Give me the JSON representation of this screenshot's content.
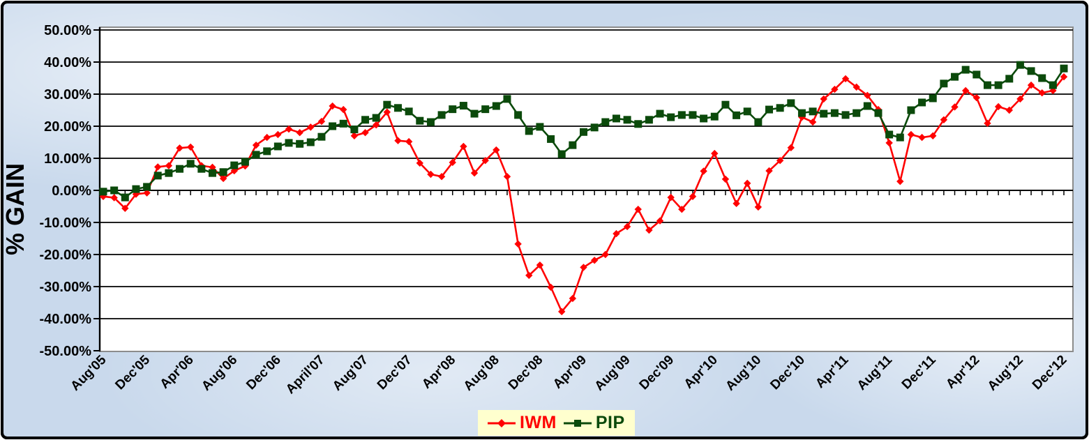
{
  "y_axis": {
    "label": "% GAIN",
    "ticks": [
      "50.00%",
      "40.00%",
      "30.00%",
      "20.00%",
      "10.00%",
      "0.00%",
      "-10.00%",
      "-20.00%",
      "-30.00%",
      "-40.00%",
      "-50.00%"
    ]
  },
  "x_axis": {
    "labels_shown_every_n_months": 4,
    "visible_labels": [
      "Aug'05",
      "Dec'05",
      "Apr'06",
      "Aug'06",
      "Dec'06",
      "April'07",
      "Aug'07",
      "Dec'07",
      "Apr'08",
      "Aug'08",
      "Dec'08",
      "Apr'09",
      "Aug'09",
      "Dec'09",
      "Apr'10",
      "Aug'10",
      "Dec'10",
      "Apr'11",
      "Aug'11",
      "Dec'11",
      "Apr'12",
      "Aug'12",
      "Dec'12"
    ]
  },
  "legend": {
    "background": "#ffffce",
    "items": [
      {
        "label": "IWM",
        "color": "#ff0000",
        "marker": "diamond"
      },
      {
        "label": "PIP",
        "color": "#0b4a0b",
        "marker": "square"
      }
    ]
  },
  "colors": {
    "page_background": "#c9d9ec",
    "plot_background": "#ffffff",
    "plot_border": "#8c8c8c",
    "gridline": "#000000",
    "frame": "#000000",
    "iwm": "#ff0000",
    "pip": "#0b4a0b",
    "legend_background": "#ffffce"
  },
  "chart_data": {
    "type": "line",
    "title": "",
    "xlabel": "",
    "ylabel": "% GAIN",
    "unit": "percent",
    "ylim": [
      -50,
      50
    ],
    "y_tick_step": 10,
    "grid": "horizontal",
    "legend_position": "bottom-center",
    "x_labels_shown_every": 4,
    "months": [
      "Aug'05",
      "Sep'05",
      "Oct'05",
      "Nov'05",
      "Dec'05",
      "Jan'06",
      "Feb'06",
      "Mar'06",
      "Apr'06",
      "May'06",
      "Jun'06",
      "Jul'06",
      "Aug'06",
      "Sep'06",
      "Oct'06",
      "Nov'06",
      "Dec'06",
      "Jan'07",
      "Feb'07",
      "Mar'07",
      "April'07",
      "May'07",
      "Jun'07",
      "Jul'07",
      "Aug'07",
      "Sep'07",
      "Oct'07",
      "Nov'07",
      "Dec'07",
      "Jan'08",
      "Feb'08",
      "Mar'08",
      "Apr'08",
      "May'08",
      "Jun'08",
      "Jul'08",
      "Aug'08",
      "Sep'08",
      "Oct'08",
      "Nov'08",
      "Dec'08",
      "Jan'09",
      "Feb'09",
      "Mar'09",
      "Apr'09",
      "May'09",
      "Jun'09",
      "Jul'09",
      "Aug'09",
      "Sep'09",
      "Oct'09",
      "Nov'09",
      "Dec'09",
      "Jan'10",
      "Feb'10",
      "Mar'10",
      "Apr'10",
      "May'10",
      "Jun'10",
      "Jul'10",
      "Aug'10",
      "Sep'10",
      "Oct'10",
      "Nov'10",
      "Dec'10",
      "Jan'11",
      "Feb'11",
      "Mar'11",
      "Apr'11",
      "May'11",
      "Jun'11",
      "Jul'11",
      "Aug'11",
      "Sep'11",
      "Oct'11",
      "Nov'11",
      "Dec'11",
      "Jan'12",
      "Feb'12",
      "Mar'12",
      "Apr'12",
      "May'12",
      "Jun'12",
      "Jul'12",
      "Aug'12",
      "Sep'12",
      "Oct'12",
      "Nov'12",
      "Dec'12"
    ],
    "series": [
      {
        "name": "IWM",
        "color": "#ff0000",
        "marker": "diamond",
        "values": [
          -1.9,
          -2.3,
          -5.6,
          -1.2,
          -0.8,
          7.3,
          7.7,
          13.2,
          13.5,
          7.7,
          7.2,
          3.7,
          6.1,
          7.6,
          14.1,
          16.5,
          17.4,
          19.1,
          18.0,
          19.7,
          21.5,
          26.3,
          25.2,
          17.0,
          18.0,
          20.4,
          24.4,
          15.5,
          15.2,
          8.5,
          5.0,
          4.3,
          8.7,
          13.7,
          5.4,
          9.3,
          12.6,
          4.3,
          -16.7,
          -26.5,
          -23.3,
          -30.2,
          -37.8,
          -33.7,
          -24.0,
          -21.8,
          -20.0,
          -13.5,
          -11.3,
          -5.9,
          -12.4,
          -9.5,
          -2.2,
          -5.9,
          -1.9,
          6.0,
          11.5,
          3.5,
          -4.1,
          2.2,
          -5.2,
          6.1,
          9.3,
          13.3,
          22.8,
          21.3,
          28.5,
          31.5,
          34.8,
          32.2,
          29.6,
          25.2,
          14.8,
          2.8,
          17.4,
          16.5,
          17.0,
          22.0,
          26.0,
          31.1,
          28.9,
          20.9,
          26.1,
          25.0,
          28.5,
          32.8,
          30.4,
          31.1,
          35.4
        ]
      },
      {
        "name": "PIP",
        "color": "#0b4a0b",
        "marker": "square",
        "values": [
          -0.4,
          0.0,
          -2.2,
          0.4,
          1.1,
          4.6,
          5.4,
          6.7,
          8.3,
          6.7,
          5.4,
          5.7,
          7.8,
          8.9,
          11.1,
          12.2,
          13.7,
          14.8,
          14.5,
          15.0,
          16.7,
          20.0,
          20.8,
          19.0,
          22.0,
          22.6,
          26.7,
          25.7,
          24.6,
          21.7,
          21.3,
          23.5,
          25.3,
          26.4,
          23.9,
          25.3,
          26.3,
          28.5,
          23.5,
          18.5,
          19.8,
          16.0,
          11.3,
          14.1,
          18.2,
          19.6,
          21.3,
          22.4,
          22.0,
          20.7,
          22.0,
          23.9,
          22.8,
          23.5,
          23.5,
          22.4,
          23.0,
          26.7,
          23.4,
          24.6,
          21.3,
          25.2,
          25.7,
          27.2,
          24.1,
          24.6,
          23.9,
          24.1,
          23.5,
          24.1,
          26.3,
          24.1,
          17.4,
          16.5,
          25.0,
          27.4,
          28.7,
          33.3,
          35.4,
          37.6,
          36.1,
          32.8,
          32.8,
          34.8,
          39.1,
          37.2,
          35.0,
          32.8,
          38.0
        ]
      }
    ]
  }
}
